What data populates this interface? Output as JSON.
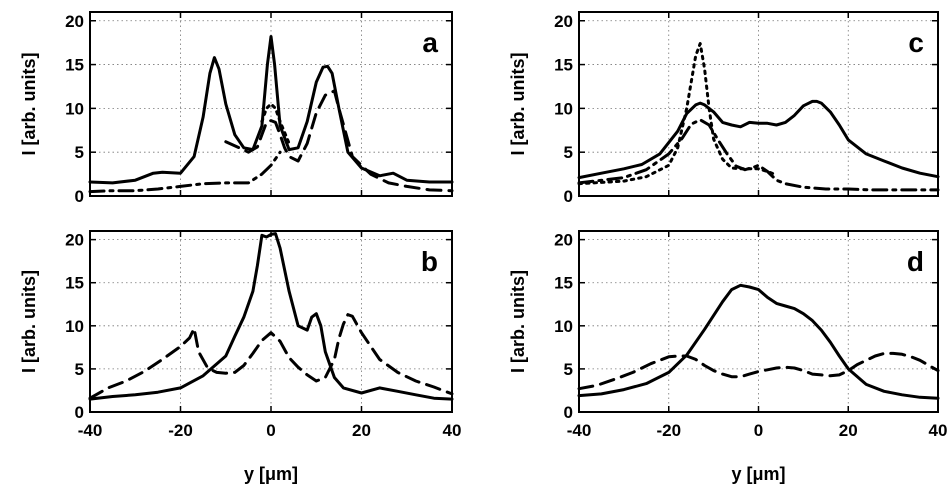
{
  "chart_data": [
    {
      "type": "line",
      "panel_label": "a",
      "ylabel": "I [arb. units]",
      "xlabel": "",
      "xlim": [
        -40,
        40
      ],
      "ylim": [
        0,
        21
      ],
      "xticks": [
        -40,
        -20,
        0,
        20,
        40
      ],
      "yticks": [
        0,
        5,
        10,
        15,
        20
      ],
      "show_xtick_labels": false,
      "grid": true,
      "series": [
        {
          "style": "solid",
          "x": [
            -40,
            -35,
            -30,
            -26,
            -24,
            -20,
            -17,
            -15,
            -13.5,
            -12.5,
            -11.5,
            -10,
            -8,
            -6,
            -4,
            -2,
            -0.8,
            0,
            0.8,
            2,
            4,
            6,
            8,
            10,
            11.5,
            12.5,
            13.5,
            15,
            17,
            20,
            24,
            27,
            30,
            35,
            40
          ],
          "y": [
            1.6,
            1.5,
            1.8,
            2.6,
            2.7,
            2.6,
            4.5,
            9,
            14,
            15.8,
            14.5,
            10.5,
            7,
            5.5,
            5.3,
            8,
            15,
            18.2,
            15,
            8,
            5.3,
            5.5,
            8.5,
            13,
            14.7,
            14.8,
            14,
            10,
            5,
            3.2,
            2.3,
            2.6,
            1.8,
            1.6,
            1.6
          ]
        },
        {
          "style": "dotted",
          "x": [
            -2,
            -1,
            0,
            1,
            2,
            4
          ],
          "y": [
            8.5,
            10,
            10.5,
            10,
            8.5,
            6
          ]
        },
        {
          "style": "dashed",
          "x": [
            -10,
            -7,
            -5,
            -3,
            -2,
            -1,
            0,
            1,
            2,
            3,
            4,
            6,
            8,
            10,
            12,
            14,
            15,
            18,
            22,
            26,
            30,
            35,
            40
          ],
          "y": [
            6.2,
            5.5,
            5,
            5.6,
            7,
            8.4,
            8.6,
            8.4,
            7,
            5.5,
            4.5,
            4,
            6,
            9.5,
            11.5,
            12,
            10,
            4.5,
            2.5,
            1.5,
            1.1,
            0.7,
            0.6
          ]
        },
        {
          "style": "dashdot",
          "x": [
            -40,
            -35,
            -30,
            -25,
            -20,
            -15,
            -10,
            -5,
            -2,
            0,
            2
          ],
          "y": [
            0.5,
            0.6,
            0.6,
            0.8,
            1.1,
            1.4,
            1.5,
            1.5,
            2.5,
            3.5,
            5
          ]
        }
      ]
    },
    {
      "type": "line",
      "panel_label": "b",
      "ylabel": "I [arb. units]",
      "xlabel": "y [μm]",
      "xlim": [
        -40,
        40
      ],
      "ylim": [
        0,
        21
      ],
      "xticks": [
        -40,
        -20,
        0,
        20,
        40
      ],
      "yticks": [
        0,
        5,
        10,
        15,
        20
      ],
      "show_xtick_labels": true,
      "grid": true,
      "series": [
        {
          "style": "solid",
          "x": [
            -40,
            -35,
            -30,
            -25,
            -20,
            -15,
            -10,
            -8,
            -6,
            -4,
            -3,
            -2,
            -1,
            0,
            1,
            2,
            4,
            6,
            8,
            9,
            10,
            11,
            12,
            14,
            16,
            20,
            24,
            28,
            32,
            36,
            40
          ],
          "y": [
            1.5,
            1.8,
            2,
            2.3,
            2.8,
            4.2,
            6.5,
            8.8,
            11,
            14,
            17,
            20.5,
            20.3,
            20.6,
            20.7,
            19,
            14,
            10,
            9.5,
            11,
            11.4,
            10,
            7,
            4,
            2.8,
            2.2,
            2.8,
            2.4,
            2,
            1.6,
            1.5
          ]
        },
        {
          "style": "dashed",
          "x": [
            -40,
            -36,
            -32,
            -28,
            -24,
            -20,
            -18,
            -17,
            -16,
            -14,
            -12,
            -10,
            -8,
            -6,
            -4,
            -2,
            0,
            2,
            4,
            6,
            8,
            10,
            12,
            14,
            15,
            16,
            17,
            18,
            20,
            24,
            28,
            32,
            36,
            40
          ],
          "y": [
            1.6,
            2.8,
            3.6,
            4.7,
            6.1,
            7.6,
            8.6,
            9.7,
            7,
            5.1,
            4.6,
            4.5,
            4.6,
            5.4,
            6.8,
            8.3,
            9.2,
            8.2,
            6.3,
            5.2,
            4.3,
            3.6,
            4,
            6.1,
            8.5,
            10.2,
            11.3,
            11.1,
            9.2,
            6.1,
            4.6,
            3.6,
            2.9,
            2.1
          ]
        }
      ]
    },
    {
      "type": "line",
      "panel_label": "c",
      "ylabel": "I [arb. units]",
      "xlabel": "",
      "xlim": [
        -40,
        40
      ],
      "ylim": [
        0,
        21
      ],
      "xticks": [
        -40,
        -20,
        0,
        20,
        40
      ],
      "yticks": [
        0,
        5,
        10,
        15,
        20
      ],
      "show_xtick_labels": false,
      "grid": true,
      "series": [
        {
          "style": "solid",
          "x": [
            -40,
            -35,
            -30,
            -26,
            -22,
            -18,
            -16,
            -14,
            -13,
            -12,
            -10,
            -8,
            -6,
            -4,
            -2,
            0,
            2,
            4,
            6,
            8,
            10,
            12,
            13,
            14,
            16,
            18,
            20,
            24,
            28,
            32,
            36,
            40
          ],
          "y": [
            2.1,
            2.6,
            3.1,
            3.6,
            4.8,
            7.4,
            9.4,
            10.4,
            10.6,
            10.4,
            9.6,
            8.4,
            8.1,
            7.9,
            8.4,
            8.3,
            8.3,
            8.1,
            8.4,
            9.2,
            10.3,
            10.8,
            10.8,
            10.6,
            9.6,
            8.1,
            6.4,
            4.8,
            4,
            3.2,
            2.6,
            2.2
          ]
        },
        {
          "style": "dotted",
          "x": [
            -40,
            -30,
            -25,
            -20,
            -18,
            -16,
            -15,
            -14,
            -13,
            -12,
            -11,
            -10,
            -8,
            -6,
            -4,
            -2,
            0,
            2,
            4
          ],
          "y": [
            1.4,
            1.7,
            2.2,
            3.5,
            5.5,
            10,
            13,
            16,
            17.4,
            14.5,
            10,
            6.5,
            4.2,
            3.2,
            3.1,
            3.1,
            3.1,
            2.8,
            2.4
          ]
        },
        {
          "style": "dashdot",
          "x": [
            -40,
            -30,
            -25,
            -20,
            -17,
            -15,
            -13,
            -11,
            -9,
            -7,
            -5,
            -3,
            -1,
            0,
            2,
            4,
            6,
            10,
            15,
            20,
            25,
            30,
            35,
            40
          ],
          "y": [
            1.5,
            2.1,
            3,
            4.8,
            6.6,
            8.2,
            8.7,
            8.1,
            6.4,
            4.8,
            3.4,
            3,
            3.3,
            3.5,
            2.8,
            1.8,
            1.4,
            1,
            0.8,
            0.8,
            0.7,
            0.7,
            0.7,
            0.7
          ]
        }
      ]
    },
    {
      "type": "line",
      "panel_label": "d",
      "ylabel": "I [arb. units]",
      "xlabel": "y [μm]",
      "xlim": [
        -40,
        40
      ],
      "ylim": [
        0,
        21
      ],
      "xticks": [
        -40,
        -20,
        0,
        20,
        40
      ],
      "yticks": [
        0,
        5,
        10,
        15,
        20
      ],
      "show_xtick_labels": true,
      "grid": true,
      "series": [
        {
          "style": "solid",
          "x": [
            -40,
            -35,
            -30,
            -25,
            -20,
            -16,
            -12,
            -8,
            -6,
            -4,
            -2,
            0,
            2,
            4,
            6,
            8,
            10,
            12,
            14,
            16,
            18,
            20,
            24,
            28,
            32,
            36,
            40
          ],
          "y": [
            1.9,
            2.1,
            2.6,
            3.3,
            4.6,
            6.6,
            9.6,
            12.8,
            14.2,
            14.7,
            14.5,
            14.2,
            13.3,
            12.6,
            12.3,
            12,
            11.4,
            10.6,
            9.5,
            8.1,
            6.5,
            5,
            3.2,
            2.4,
            2,
            1.7,
            1.6
          ]
        },
        {
          "style": "dashed",
          "x": [
            -40,
            -36,
            -32,
            -28,
            -24,
            -20,
            -18,
            -16,
            -14,
            -12,
            -10,
            -8,
            -6,
            -4,
            -2,
            0,
            2,
            4,
            6,
            8,
            10,
            12,
            14,
            16,
            18,
            20,
            22,
            24,
            26,
            28,
            30,
            32,
            34,
            36,
            38,
            40
          ],
          "y": [
            2.7,
            3.1,
            3.8,
            4.6,
            5.6,
            6.4,
            6.5,
            6.5,
            6.1,
            5.4,
            4.8,
            4.4,
            4.1,
            4.1,
            4.4,
            4.7,
            4.9,
            5.1,
            5.2,
            5.1,
            4.8,
            4.4,
            4.3,
            4.2,
            4.3,
            4.8,
            5.5,
            6,
            6.5,
            6.8,
            6.8,
            6.7,
            6.4,
            6,
            5.4,
            4.8
          ]
        }
      ]
    }
  ]
}
